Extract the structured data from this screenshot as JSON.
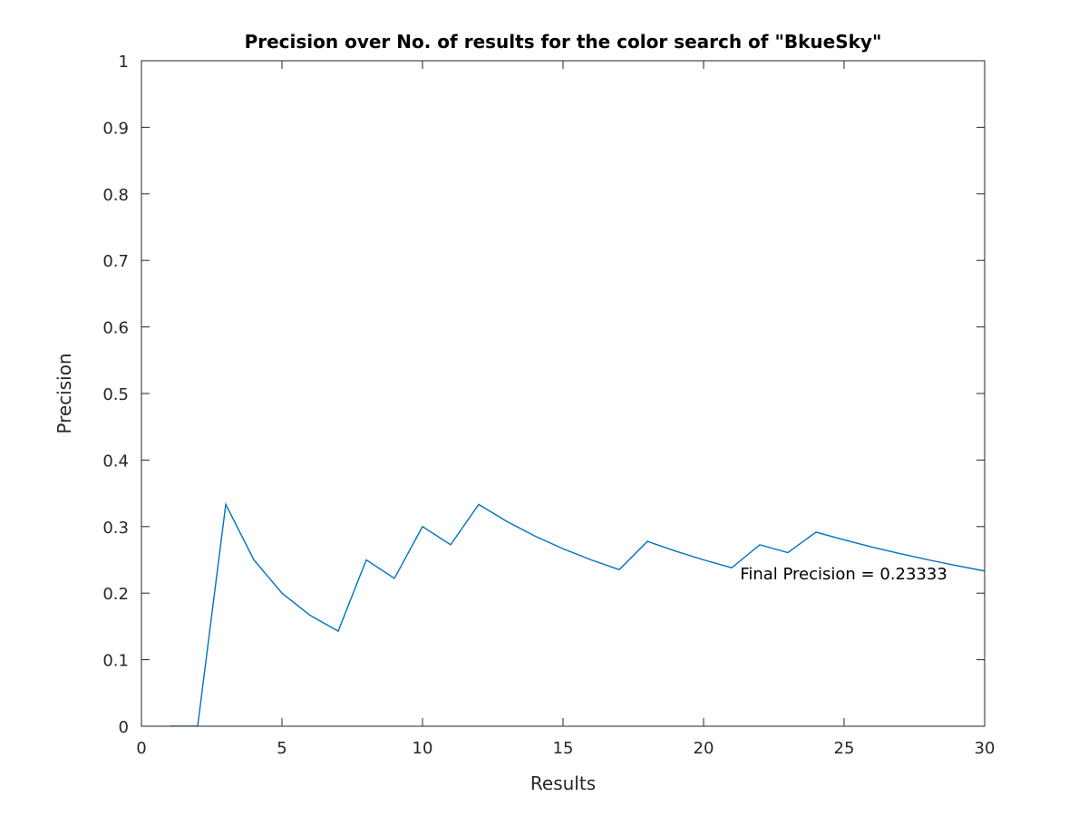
{
  "chart_data": {
    "type": "line",
    "title": "Precision over No. of results for the color search of \"BkueSky\"",
    "xlabel": "Results",
    "ylabel": "Precision",
    "xlim": [
      0,
      30
    ],
    "ylim": [
      0,
      1
    ],
    "xticks": [
      0,
      5,
      10,
      15,
      20,
      25,
      30
    ],
    "yticks": [
      0,
      0.1,
      0.2,
      0.3,
      0.4,
      0.5,
      0.6,
      0.7,
      0.8,
      0.9,
      1
    ],
    "ytick_labels": [
      "0",
      "0.1",
      "0.2",
      "0.3",
      "0.4",
      "0.5",
      "0.6",
      "0.7",
      "0.8",
      "0.9",
      "1"
    ],
    "grid": false,
    "series": [
      {
        "color": "#0072bd",
        "x": [
          1,
          2,
          3,
          4,
          5,
          6,
          7,
          8,
          9,
          10,
          11,
          12,
          13,
          14,
          15,
          16,
          17,
          18,
          19,
          20,
          21,
          22,
          23,
          24,
          25,
          26,
          27,
          28,
          29,
          30
        ],
        "y": [
          0,
          0,
          0.3333,
          0.25,
          0.2,
          0.1667,
          0.1429,
          0.25,
          0.2222,
          0.3,
          0.2727,
          0.3333,
          0.3077,
          0.2857,
          0.2667,
          0.25,
          0.2353,
          0.2778,
          0.2632,
          0.25,
          0.2381,
          0.2727,
          0.2609,
          0.2917,
          0.28,
          0.2692,
          0.2593,
          0.25,
          0.2414,
          0.2333
        ]
      }
    ],
    "annotations": [
      {
        "text": "Final Precision = 0.23333",
        "x": 21.3,
        "y": 0.23
      }
    ]
  }
}
